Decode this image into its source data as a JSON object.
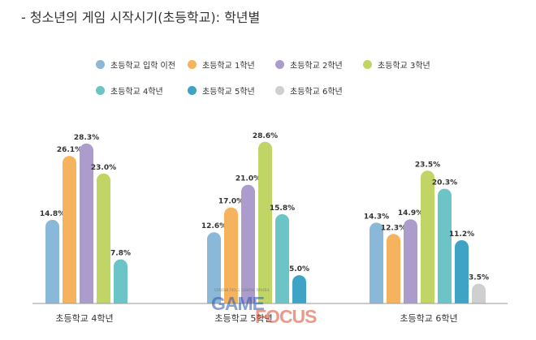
{
  "title": "-  청소년의 게임 시작시기(초등학교): 학년별",
  "chart_data": {
    "type": "bar",
    "categories": [
      "초등학교 4학년",
      "초등학교 5학년",
      "초등학교 6학년"
    ],
    "series": [
      {
        "name": "초등학교 입학 이전",
        "color": "#8ab8d8",
        "values": [
          14.8,
          12.6,
          14.3
        ]
      },
      {
        "name": "초등학교 1학년",
        "color": "#f5b35e",
        "values": [
          26.1,
          17.0,
          12.3
        ]
      },
      {
        "name": "초등학교 2학년",
        "color": "#ac9ccc",
        "values": [
          28.3,
          21.0,
          14.9
        ]
      },
      {
        "name": "초등학교 3학년",
        "color": "#c1d566",
        "values": [
          23.0,
          28.6,
          23.5
        ]
      },
      {
        "name": "초등학교 4학년",
        "color": "#6dc4c6",
        "values": [
          7.8,
          15.8,
          20.3
        ]
      },
      {
        "name": "초등학교 5학년",
        "color": "#3fa3c6",
        "values": [
          null,
          5.0,
          11.2
        ]
      },
      {
        "name": "초등학교 6학년",
        "color": "#cfcfcf",
        "values": [
          null,
          null,
          3.5
        ]
      }
    ],
    "ylim": [
      0,
      30
    ],
    "value_suffix": "%",
    "grid": false,
    "legend_position": "top"
  },
  "watermark": {
    "small": "Global No.1 Game Media",
    "word1": "GAME",
    "word2": "FOCUS"
  }
}
